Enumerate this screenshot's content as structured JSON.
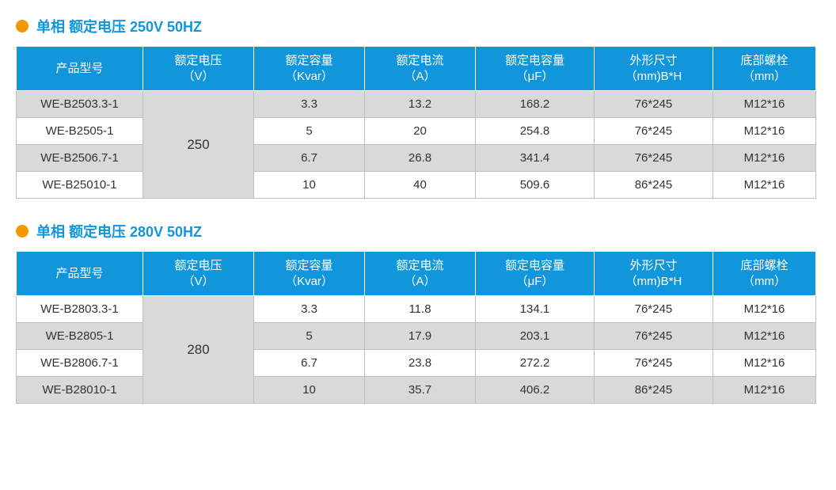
{
  "colors": {
    "header_bg": "#1296db",
    "header_fg": "#ffffff",
    "bullet": "#f39800",
    "title": "#1296db",
    "row_alt_bg": "#d9d9d9",
    "row_bg": "#ffffff",
    "border": "#bfbfbf",
    "text": "#333333"
  },
  "sections": [
    {
      "title": "单相 额定电压 250V 50HZ",
      "headers": {
        "model": "产品型号",
        "volt": "额定电压\n（V）",
        "kvar": "额定容量\n（Kvar）",
        "amp": "额定电流\n（A）",
        "uf": "额定电容量\n（μF）",
        "dim": "外形尺寸\n（mm)B*H",
        "bolt": "底部螺栓\n（mm）"
      },
      "voltage": "250",
      "rows": [
        {
          "model": "WE-B2503.3-1",
          "kvar": "3.3",
          "amp": "13.2",
          "uf": "168.2",
          "dim": "76*245",
          "bolt": "M12*16",
          "alt": true
        },
        {
          "model": "WE-B2505-1",
          "kvar": "5",
          "amp": "20",
          "uf": "254.8",
          "dim": "76*245",
          "bolt": "M12*16",
          "alt": false
        },
        {
          "model": "WE-B2506.7-1",
          "kvar": "6.7",
          "amp": "26.8",
          "uf": "341.4",
          "dim": "76*245",
          "bolt": "M12*16",
          "alt": true
        },
        {
          "model": "WE-B25010-1",
          "kvar": "10",
          "amp": "40",
          "uf": "509.6",
          "dim": "86*245",
          "bolt": "M12*16",
          "alt": false
        }
      ]
    },
    {
      "title": "单相 额定电压 280V 50HZ",
      "headers": {
        "model": "产品型号",
        "volt": "额定电压\n（V）",
        "kvar": "额定容量\n（Kvar）",
        "amp": "额定电流\n（A）",
        "uf": "额定电容量\n（μF）",
        "dim": "外形尺寸\n（mm)B*H",
        "bolt": "底部螺栓\n（mm）"
      },
      "voltage": "280",
      "rows": [
        {
          "model": "WE-B2803.3-1",
          "kvar": "3.3",
          "amp": "11.8",
          "uf": "134.1",
          "dim": "76*245",
          "bolt": "M12*16",
          "alt": false
        },
        {
          "model": "WE-B2805-1",
          "kvar": "5",
          "amp": "17.9",
          "uf": "203.1",
          "dim": "76*245",
          "bolt": "M12*16",
          "alt": true
        },
        {
          "model": "WE-B2806.7-1",
          "kvar": "6.7",
          "amp": "23.8",
          "uf": "272.2",
          "dim": "76*245",
          "bolt": "M12*16",
          "alt": false
        },
        {
          "model": "WE-B28010-1",
          "kvar": "10",
          "amp": "35.7",
          "uf": "406.2",
          "dim": "86*245",
          "bolt": "M12*16",
          "alt": true
        }
      ]
    }
  ]
}
